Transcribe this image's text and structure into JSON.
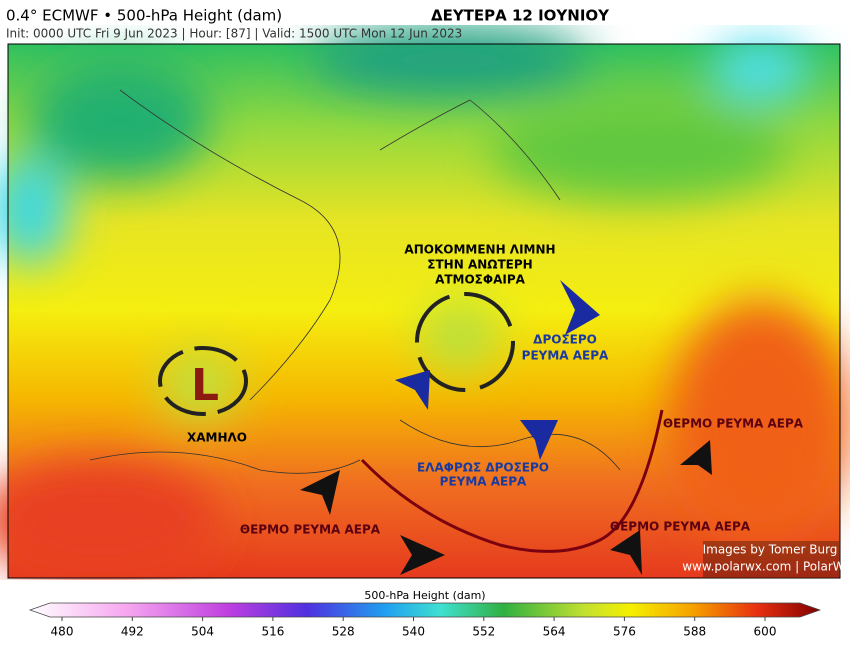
{
  "header": {
    "title": "0.4° ECMWF • 500-hPa Height (dam)",
    "date": "ΔΕΥΤΕΡΑ 12 ΙΟΥΝΙΟΥ",
    "init": "Init: 0000 UTC Fri 9 Jun 2023 | Hour: [87] | Valid: 1500 UTC Mon 12 Jun 2023"
  },
  "annotations": {
    "cutoff_low": [
      "ΑΠΟΚΟΜΜΕΝΗ ΛΙΜΝΗ",
      "ΣΤΗΝ ΑΝΩΤΕΡΗ",
      "ΑΤΜΟΣΦΑΙΡΑ"
    ],
    "cool_flow": [
      "ΔΡΟΣΕΡΟ",
      "ΡΕΥΜΑ ΑΕΡΑ"
    ],
    "low_symbol": "L",
    "low_label": "ΧΑΜΗΛΟ",
    "warm_flow_east": "ΘΕΡΜΟ ΡΕΥΜΑ ΑΕΡΑ",
    "warm_flow_west": "ΘΕΡΜΟ ΡΕΥΜΑ ΑΕΡΑ",
    "warm_flow_south": "ΘΕΡΜΟ ΡΕΥΜΑ ΑΕΡΑ",
    "slightly_cool_flow": [
      "ΕΛΑΦΡΩΣ ΔΡΟΣΕΡΟ",
      "ΡΕΥΜΑ ΑΕΡΑ"
    ]
  },
  "credits": {
    "images": "Images by Tomer Burg",
    "site": "www.polarwx.com | PolarWx"
  },
  "colorbar": {
    "label": "500-hPa Height (dam)",
    "ticks": [
      480,
      492,
      504,
      516,
      528,
      540,
      552,
      564,
      576,
      588,
      600
    ]
  }
}
